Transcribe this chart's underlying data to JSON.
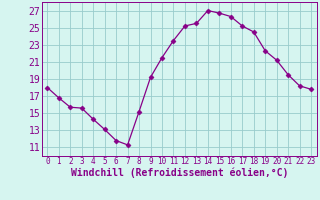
{
  "x": [
    0,
    1,
    2,
    3,
    4,
    5,
    6,
    7,
    8,
    9,
    10,
    11,
    12,
    13,
    14,
    15,
    16,
    17,
    18,
    19,
    20,
    21,
    22,
    23
  ],
  "y": [
    18.0,
    16.8,
    15.7,
    15.6,
    14.3,
    13.1,
    11.8,
    11.3,
    15.2,
    19.2,
    21.5,
    23.5,
    25.2,
    25.5,
    27.0,
    26.7,
    26.3,
    25.2,
    24.5,
    22.3,
    21.2,
    19.5,
    18.2,
    17.8
  ],
  "line_color": "#880088",
  "marker": "D",
  "marker_size": 2.5,
  "bg_color": "#d6f5f0",
  "grid_color": "#99cccc",
  "xlabel": "Windchill (Refroidissement éolien,°C)",
  "xlabel_fontsize": 7,
  "ytick_fontsize": 7,
  "xtick_fontsize": 5.5,
  "yticks": [
    11,
    13,
    15,
    17,
    19,
    21,
    23,
    25,
    27
  ],
  "xticks": [
    0,
    1,
    2,
    3,
    4,
    5,
    6,
    7,
    8,
    9,
    10,
    11,
    12,
    13,
    14,
    15,
    16,
    17,
    18,
    19,
    20,
    21,
    22,
    23
  ],
  "ylim": [
    10.0,
    28.0
  ],
  "xlim": [
    -0.5,
    23.5
  ]
}
